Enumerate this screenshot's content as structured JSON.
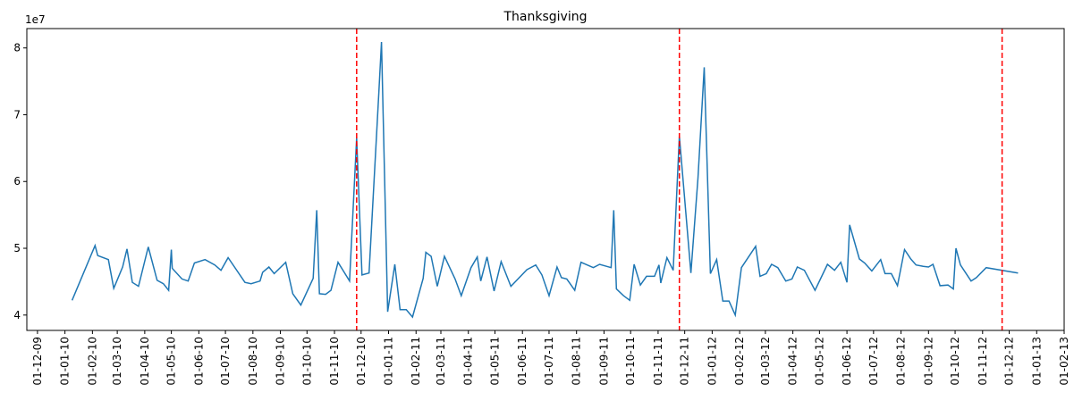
{
  "chart_data": {
    "type": "line",
    "title": "Thanksgiving",
    "y_offset_label": "1e7",
    "x": [
      "2010-01-09",
      "2010-02-04",
      "2010-02-07",
      "2010-02-19",
      "2010-02-25",
      "2010-03-07",
      "2010-03-12",
      "2010-03-18",
      "2010-03-25",
      "2010-04-05",
      "2010-04-15",
      "2010-04-22",
      "2010-04-28",
      "2010-05-01",
      "2010-05-02",
      "2010-05-13",
      "2010-05-20",
      "2010-05-27",
      "2010-06-08",
      "2010-06-19",
      "2010-06-26",
      "2010-07-04",
      "2010-07-23",
      "2010-07-30",
      "2010-08-09",
      "2010-08-12",
      "2010-08-19",
      "2010-08-25",
      "2010-09-07",
      "2010-09-15",
      "2010-09-24",
      "2010-10-08",
      "2010-10-12",
      "2010-10-15",
      "2010-10-22",
      "2010-10-28",
      "2010-11-05",
      "2010-11-18",
      "2010-11-26",
      "2010-12-02",
      "2010-12-10",
      "2010-12-21",
      "2010-12-24",
      "2010-12-31",
      "2011-01-08",
      "2011-01-14",
      "2011-01-21",
      "2011-01-28",
      "2011-02-09",
      "2011-02-12",
      "2011-02-18",
      "2011-02-25",
      "2011-03-05",
      "2011-03-17",
      "2011-03-24",
      "2011-04-04",
      "2011-04-11",
      "2011-04-15",
      "2011-04-22",
      "2011-04-30",
      "2011-05-08",
      "2011-05-19",
      "2011-06-06",
      "2011-06-16",
      "2011-06-23",
      "2011-07-01",
      "2011-07-10",
      "2011-07-15",
      "2011-07-21",
      "2011-07-30",
      "2011-08-06",
      "2011-08-20",
      "2011-08-27",
      "2011-09-09",
      "2011-09-12",
      "2011-09-15",
      "2011-09-23",
      "2011-09-30",
      "2011-10-05",
      "2011-10-12",
      "2011-10-19",
      "2011-10-28",
      "2011-11-02",
      "2011-11-04",
      "2011-11-11",
      "2011-11-18",
      "2011-11-25",
      "2011-12-08",
      "2011-12-16",
      "2011-12-23",
      "2011-12-30",
      "2012-01-06",
      "2012-01-13",
      "2012-01-20",
      "2012-01-27",
      "2012-02-03",
      "2012-02-19",
      "2012-02-24",
      "2012-03-02",
      "2012-03-08",
      "2012-03-15",
      "2012-03-24",
      "2012-03-31",
      "2012-04-06",
      "2012-04-14",
      "2012-04-26",
      "2012-05-10",
      "2012-05-18",
      "2012-05-25",
      "2012-06-01",
      "2012-06-04",
      "2012-06-09",
      "2012-06-15",
      "2012-06-21",
      "2012-06-29",
      "2012-07-09",
      "2012-07-14",
      "2012-07-21",
      "2012-07-28",
      "2012-08-05",
      "2012-08-12",
      "2012-08-18",
      "2012-08-26",
      "2012-09-01",
      "2012-09-06",
      "2012-09-14",
      "2012-09-23",
      "2012-09-29",
      "2012-10-02",
      "2012-10-07",
      "2012-10-19",
      "2012-10-25",
      "2012-11-05",
      "2012-12-11"
    ],
    "values": [
      4.22,
      5.04,
      4.89,
      4.83,
      4.4,
      4.72,
      4.99,
      4.49,
      4.43,
      5.02,
      4.52,
      4.47,
      4.37,
      4.98,
      4.7,
      4.54,
      4.51,
      4.78,
      4.83,
      4.75,
      4.67,
      4.86,
      4.49,
      4.47,
      4.51,
      4.64,
      4.72,
      4.62,
      4.79,
      4.32,
      4.15,
      4.55,
      5.57,
      4.32,
      4.31,
      4.37,
      4.79,
      4.51,
      6.65,
      4.6,
      4.63,
      7.32,
      8.09,
      4.05,
      4.76,
      4.08,
      4.08,
      3.97,
      4.55,
      4.94,
      4.88,
      4.43,
      4.88,
      4.54,
      4.29,
      4.71,
      4.87,
      4.51,
      4.87,
      4.36,
      4.8,
      4.43,
      4.68,
      4.75,
      4.6,
      4.29,
      4.72,
      4.56,
      4.54,
      4.37,
      4.79,
      4.71,
      4.76,
      4.71,
      5.57,
      4.39,
      4.29,
      4.22,
      4.76,
      4.45,
      4.58,
      4.58,
      4.75,
      4.48,
      4.86,
      4.67,
      6.68,
      4.63,
      6.05,
      7.71,
      4.62,
      4.83,
      4.21,
      4.21,
      4.0,
      4.71,
      5.03,
      4.58,
      4.62,
      4.76,
      4.71,
      4.51,
      4.54,
      4.72,
      4.67,
      4.37,
      4.76,
      4.67,
      4.79,
      4.49,
      5.35,
      5.12,
      4.84,
      4.78,
      4.66,
      4.83,
      4.62,
      4.62,
      4.44,
      4.98,
      4.84,
      4.75,
      4.73,
      4.72,
      4.76,
      4.44,
      4.45,
      4.39,
      5.0,
      4.75,
      4.51,
      4.56,
      4.71,
      4.63
    ],
    "color": "#1f77b4",
    "vlines": [
      "2010-11-26",
      "2011-11-25",
      "2012-11-23"
    ],
    "vline_color": "#ff0000",
    "xlim": [
      "2009-11-19",
      "2013-02-01"
    ],
    "xticks": [
      {
        "value": "2009-12-01",
        "label": "01-12-09"
      },
      {
        "value": "2010-01-01",
        "label": "01-01-10"
      },
      {
        "value": "2010-02-01",
        "label": "01-02-10"
      },
      {
        "value": "2010-03-01",
        "label": "01-03-10"
      },
      {
        "value": "2010-04-01",
        "label": "01-04-10"
      },
      {
        "value": "2010-05-01",
        "label": "01-05-10"
      },
      {
        "value": "2010-06-01",
        "label": "01-06-10"
      },
      {
        "value": "2010-07-01",
        "label": "01-07-10"
      },
      {
        "value": "2010-08-01",
        "label": "01-08-10"
      },
      {
        "value": "2010-09-01",
        "label": "01-09-10"
      },
      {
        "value": "2010-10-01",
        "label": "01-10-10"
      },
      {
        "value": "2010-11-01",
        "label": "01-11-10"
      },
      {
        "value": "2010-12-01",
        "label": "01-12-10"
      },
      {
        "value": "2011-01-01",
        "label": "01-01-11"
      },
      {
        "value": "2011-02-01",
        "label": "01-02-11"
      },
      {
        "value": "2011-03-01",
        "label": "01-03-11"
      },
      {
        "value": "2011-04-01",
        "label": "01-04-11"
      },
      {
        "value": "2011-05-01",
        "label": "01-05-11"
      },
      {
        "value": "2011-06-01",
        "label": "01-06-11"
      },
      {
        "value": "2011-07-01",
        "label": "01-07-11"
      },
      {
        "value": "2011-08-01",
        "label": "01-08-11"
      },
      {
        "value": "2011-09-01",
        "label": "01-09-11"
      },
      {
        "value": "2011-10-01",
        "label": "01-10-11"
      },
      {
        "value": "2011-11-01",
        "label": "01-11-11"
      },
      {
        "value": "2011-12-01",
        "label": "01-12-11"
      },
      {
        "value": "2012-01-01",
        "label": "01-01-12"
      },
      {
        "value": "2012-02-01",
        "label": "01-02-12"
      },
      {
        "value": "2012-03-01",
        "label": "01-03-12"
      },
      {
        "value": "2012-04-01",
        "label": "01-04-12"
      },
      {
        "value": "2012-05-01",
        "label": "01-05-12"
      },
      {
        "value": "2012-06-01",
        "label": "01-06-12"
      },
      {
        "value": "2012-07-01",
        "label": "01-07-12"
      },
      {
        "value": "2012-08-01",
        "label": "01-08-12"
      },
      {
        "value": "2012-09-01",
        "label": "01-09-12"
      },
      {
        "value": "2012-10-01",
        "label": "01-10-12"
      },
      {
        "value": "2012-11-01",
        "label": "01-11-12"
      },
      {
        "value": "2012-12-01",
        "label": "01-12-12"
      },
      {
        "value": "2013-01-01",
        "label": "01-01-13"
      },
      {
        "value": "2013-02-01",
        "label": "01-02-13"
      }
    ],
    "ylim": [
      3.77,
      8.29
    ],
    "yticks": [
      4,
      5,
      6,
      7,
      8
    ]
  }
}
